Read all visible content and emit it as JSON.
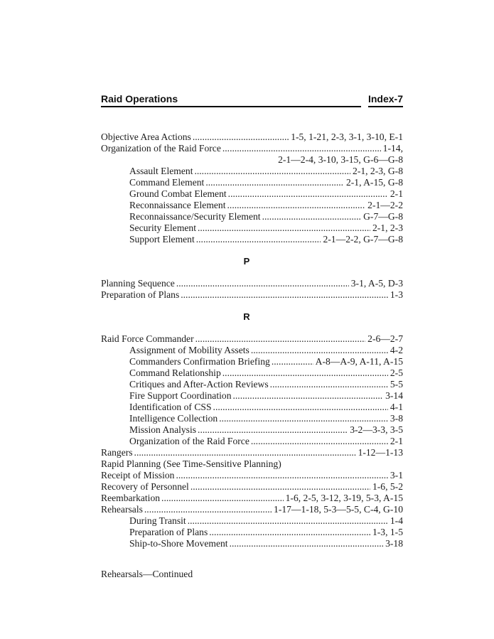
{
  "document": {
    "header": {
      "left_title": "Raid Operations",
      "right_page_label": "Index-7"
    },
    "footer_note": "Rehearsals—Continued"
  },
  "index": {
    "rows": [
      {
        "kind": "entry",
        "indent": 0,
        "label": "Objective Area Actions",
        "pages": "1-5, 1-21, 2-3, 3-1, 3-10, E-1"
      },
      {
        "kind": "entry",
        "indent": 0,
        "label": "Organization of the Raid Force",
        "pages": "1-14,"
      },
      {
        "kind": "cont",
        "pages": "2-1—2-4, 3-10, 3-15, G-6—G-8"
      },
      {
        "kind": "entry",
        "indent": 1,
        "label": "Assault Element",
        "pages": "2-1, 2-3, G-8"
      },
      {
        "kind": "entry",
        "indent": 1,
        "label": "Command Element",
        "pages": "2-1, A-15, G-8"
      },
      {
        "kind": "entry",
        "indent": 1,
        "label": "Ground Combat Element",
        "pages": "2-1"
      },
      {
        "kind": "entry",
        "indent": 1,
        "label": "Reconnaissance Element",
        "pages": "2-1—2-2"
      },
      {
        "kind": "entry",
        "indent": 1,
        "label": "Reconnaissance/Security Element",
        "pages": "G-7—G-8"
      },
      {
        "kind": "entry",
        "indent": 1,
        "label": "Security Element",
        "pages": "2-1, 2-3"
      },
      {
        "kind": "entry",
        "indent": 1,
        "label": "Support Element",
        "pages": "2-1—2-2, G-7—G-8"
      },
      {
        "kind": "section",
        "letter": "P"
      },
      {
        "kind": "entry",
        "indent": 0,
        "label": "Planning Sequence",
        "pages": "3-1, A-5, D-3"
      },
      {
        "kind": "entry",
        "indent": 0,
        "label": "Preparation of Plans",
        "pages": "1-3"
      },
      {
        "kind": "section",
        "letter": "R"
      },
      {
        "kind": "entry",
        "indent": 0,
        "label": "Raid Force Commander",
        "pages": "2-6—2-7"
      },
      {
        "kind": "entry",
        "indent": 1,
        "label": "Assignment of Mobility Assets",
        "pages": "4-2"
      },
      {
        "kind": "entry",
        "indent": 1,
        "label": "Commanders Confirmation Briefing",
        "pages": "A-8—A-9, A-11, A-15"
      },
      {
        "kind": "entry",
        "indent": 1,
        "label": "Command Relationship",
        "pages": "2-5"
      },
      {
        "kind": "entry",
        "indent": 1,
        "label": "Critiques and After-Action Reviews",
        "pages": "5-5"
      },
      {
        "kind": "entry",
        "indent": 1,
        "label": "Fire Support Coordination",
        "pages": "3-14"
      },
      {
        "kind": "entry",
        "indent": 1,
        "label": "Identification of CSS",
        "pages": "4-1"
      },
      {
        "kind": "entry",
        "indent": 1,
        "label": "Intelligence Collection",
        "pages": "3-8"
      },
      {
        "kind": "entry",
        "indent": 1,
        "label": "Mission Analysis",
        "pages": "3-2—3-3, 3-5"
      },
      {
        "kind": "entry",
        "indent": 1,
        "label": "Organization of the Raid Force",
        "pages": "2-1"
      },
      {
        "kind": "entry",
        "indent": 0,
        "label": "Rangers",
        "pages": "1-12—1-13"
      },
      {
        "kind": "plain",
        "indent": 0,
        "label": "Rapid Planning (See Time-Sensitive Planning)"
      },
      {
        "kind": "entry",
        "indent": 0,
        "label": "Receipt of Mission",
        "pages": "3-1"
      },
      {
        "kind": "entry",
        "indent": 0,
        "label": "Recovery of Personnel",
        "pages": "1-6, 5-2"
      },
      {
        "kind": "entry",
        "indent": 0,
        "label": "Reembarkation",
        "pages": "1-6, 2-5, 3-12, 3-19, 5-3, A-15"
      },
      {
        "kind": "entry",
        "indent": 0,
        "label": "Rehearsals",
        "pages": "1-17—1-18, 5-3—5-5, C-4, G-10"
      },
      {
        "kind": "entry",
        "indent": 1,
        "label": "During Transit",
        "pages": "1-4"
      },
      {
        "kind": "entry",
        "indent": 1,
        "label": "Preparation of Plans",
        "pages": "1-3, 1-5"
      },
      {
        "kind": "entry",
        "indent": 1,
        "label": "Ship-to-Shore Movement",
        "pages": "3-18"
      }
    ]
  }
}
